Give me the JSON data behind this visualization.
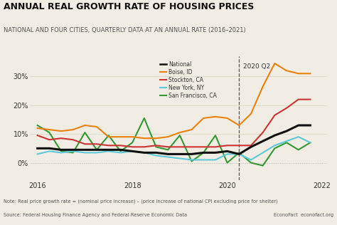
{
  "title": "ANNUAL REAL GROWTH RATE OF HOUSING PRICES",
  "subtitle": "NATIONAL AND FOUR CITIES, QUARTERLY DATA AT AN ANNUAL RATE (2016–2021)",
  "note": "Note: Real price growth rate = (nominal price increase) – (price increase of national CPI excluding price for shelter)",
  "source": "Source: Federal Housing Finance Agency and Federal Reserve Economic Data",
  "brand": "EconoFact  econofact.org",
  "vline_label": "2020 Q2",
  "vline_x": 2020.25,
  "series": {
    "National": {
      "color": "#111111",
      "lw": 2.2,
      "x": [
        2016.0,
        2016.25,
        2016.5,
        2016.75,
        2017.0,
        2017.25,
        2017.5,
        2017.75,
        2018.0,
        2018.25,
        2018.5,
        2018.75,
        2019.0,
        2019.25,
        2019.5,
        2019.75,
        2020.0,
        2020.25,
        2020.5,
        2020.75,
        2021.0,
        2021.25,
        2021.5,
        2021.75
      ],
      "y": [
        5.0,
        5.0,
        4.5,
        4.5,
        4.5,
        4.5,
        4.5,
        4.5,
        4.0,
        3.5,
        3.5,
        3.0,
        3.0,
        3.0,
        3.5,
        3.5,
        4.0,
        3.0,
        5.5,
        7.5,
        9.5,
        11.0,
        13.0,
        13.0
      ]
    },
    "Boise, ID": {
      "color": "#e8820c",
      "lw": 1.5,
      "x": [
        2016.0,
        2016.25,
        2016.5,
        2016.75,
        2017.0,
        2017.25,
        2017.5,
        2017.75,
        2018.0,
        2018.25,
        2018.5,
        2018.75,
        2019.0,
        2019.25,
        2019.5,
        2019.75,
        2020.0,
        2020.25,
        2020.5,
        2020.75,
        2021.0,
        2021.25,
        2021.5,
        2021.75
      ],
      "y": [
        12.0,
        11.5,
        11.0,
        11.5,
        13.0,
        12.5,
        9.0,
        9.0,
        9.0,
        8.5,
        8.5,
        9.0,
        10.5,
        11.5,
        15.5,
        16.0,
        15.5,
        13.0,
        17.0,
        26.5,
        34.5,
        32.0,
        31.0,
        31.0
      ]
    },
    "Stockton, CA": {
      "color": "#cc3333",
      "lw": 1.5,
      "x": [
        2016.0,
        2016.25,
        2016.5,
        2016.75,
        2017.0,
        2017.25,
        2017.5,
        2017.75,
        2018.0,
        2018.25,
        2018.5,
        2018.75,
        2019.0,
        2019.25,
        2019.5,
        2019.75,
        2020.0,
        2020.25,
        2020.5,
        2020.75,
        2021.0,
        2021.25,
        2021.5,
        2021.75
      ],
      "y": [
        9.5,
        8.0,
        8.5,
        8.0,
        6.5,
        6.5,
        6.0,
        6.0,
        5.5,
        5.5,
        6.0,
        5.5,
        5.5,
        5.5,
        5.5,
        5.5,
        6.0,
        6.0,
        6.0,
        10.5,
        16.5,
        19.0,
        22.0,
        22.0
      ]
    },
    "New York, NY": {
      "color": "#5ec8d8",
      "lw": 1.5,
      "x": [
        2016.0,
        2016.25,
        2016.5,
        2016.75,
        2017.0,
        2017.25,
        2017.5,
        2017.75,
        2018.0,
        2018.25,
        2018.5,
        2018.75,
        2019.0,
        2019.25,
        2019.5,
        2019.75,
        2020.0,
        2020.25,
        2020.5,
        2020.75,
        2021.0,
        2021.25,
        2021.5,
        2021.75
      ],
      "y": [
        3.0,
        4.0,
        3.5,
        4.0,
        3.5,
        3.5,
        4.0,
        3.5,
        4.0,
        3.5,
        2.5,
        2.0,
        1.5,
        1.0,
        1.0,
        1.0,
        3.0,
        3.0,
        1.0,
        3.5,
        6.0,
        7.5,
        9.0,
        7.0
      ]
    },
    "San Francisco, CA": {
      "color": "#339933",
      "lw": 1.5,
      "x": [
        2016.0,
        2016.25,
        2016.5,
        2016.75,
        2017.0,
        2017.25,
        2017.5,
        2017.75,
        2018.0,
        2018.25,
        2018.5,
        2018.75,
        2019.0,
        2019.25,
        2019.5,
        2019.75,
        2020.0,
        2020.25,
        2020.5,
        2020.75,
        2021.0,
        2021.25,
        2021.5,
        2021.75
      ],
      "y": [
        13.0,
        10.5,
        4.0,
        3.5,
        10.5,
        4.5,
        9.5,
        4.0,
        7.0,
        15.5,
        5.5,
        4.5,
        9.5,
        0.5,
        3.5,
        9.5,
        0.0,
        3.5,
        0.0,
        -1.0,
        5.0,
        7.0,
        4.5,
        7.0
      ]
    }
  },
  "xlim": [
    2015.85,
    2022.1
  ],
  "ylim": [
    -6,
    37
  ],
  "yticks": [
    0,
    10,
    20,
    30
  ],
  "ytick_labels": [
    "0%",
    "10%",
    "20%",
    "30%"
  ],
  "xticks": [
    2016,
    2018,
    2020,
    2022
  ],
  "bg_color": "#f2ede4",
  "plot_bg_color": "#f2ede4",
  "grid_color": "#ddddcc",
  "zero_line_color": "#bbbbaa"
}
